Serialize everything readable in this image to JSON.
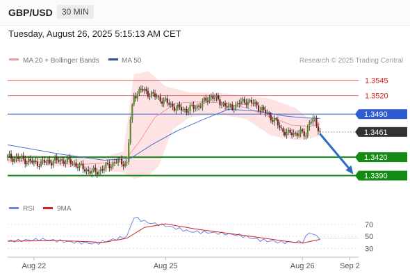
{
  "header": {
    "symbol": "GBP/USD",
    "timeframe": "30 MIN",
    "datetime": "Tuesday, August 26, 2025 5:15:13 AM CET"
  },
  "legend": {
    "ma20_bb": "MA 20 + Bollinger Bands",
    "ma50": "MA 50",
    "credit": "Research © 2025 Trading Central"
  },
  "rsi_legend": {
    "rsi": "RSI",
    "ma9": "9MA"
  },
  "colors": {
    "bg": "#ffffff",
    "resistance": "#e86a6a",
    "support": "#138a13",
    "ma50": "#4a6fd0",
    "ma20": "#f29a9a",
    "band": "#fde0e0",
    "current": "#333333",
    "arrow": "#2b6cc0",
    "rsi": "#6e86e0",
    "rsi_ma": "#d42020"
  },
  "chart_data": [
    {
      "type": "candlestick",
      "ylim": [
        1.3376,
        1.3566
      ],
      "x_ticks": [
        "Aug 22",
        "Aug 25",
        "Aug 26",
        "Sep 2"
      ],
      "levels": [
        {
          "label": "1.3545",
          "value": 1.3545,
          "kind": "resistance"
        },
        {
          "label": "1.3520",
          "value": 1.352,
          "kind": "resistance"
        },
        {
          "label": "1.3490",
          "value": 1.349,
          "kind": "ma50"
        },
        {
          "label": "1.3461",
          "value": 1.3461,
          "kind": "current"
        },
        {
          "label": "1.3420",
          "value": 1.342,
          "kind": "support"
        },
        {
          "label": "1.3390",
          "value": 1.339,
          "kind": "support"
        }
      ],
      "price_path": [
        [
          0,
          1.342
        ],
        [
          8,
          1.3417
        ],
        [
          16,
          1.341
        ],
        [
          24,
          1.3413
        ],
        [
          32,
          1.3415
        ],
        [
          38,
          1.341
        ],
        [
          44,
          1.34
        ],
        [
          50,
          1.3395
        ],
        [
          56,
          1.3404
        ],
        [
          62,
          1.3413
        ],
        [
          68,
          1.341
        ],
        [
          70,
          1.348
        ],
        [
          72,
          1.352
        ],
        [
          76,
          1.353
        ],
        [
          82,
          1.3522
        ],
        [
          90,
          1.351
        ],
        [
          96,
          1.35
        ],
        [
          102,
          1.3497
        ],
        [
          110,
          1.3505
        ],
        [
          116,
          1.352
        ],
        [
          122,
          1.3508
        ],
        [
          126,
          1.35
        ],
        [
          130,
          1.3505
        ],
        [
          136,
          1.3512
        ],
        [
          142,
          1.3504
        ],
        [
          148,
          1.349
        ],
        [
          152,
          1.348
        ],
        [
          156,
          1.3465
        ],
        [
          160,
          1.3458
        ],
        [
          166,
          1.346
        ],
        [
          170,
          1.3456
        ],
        [
          172,
          1.348
        ],
        [
          175,
          1.3478
        ],
        [
          178,
          1.3461
        ]
      ],
      "ma20_path": [
        [
          0,
          1.3415
        ],
        [
          20,
          1.3412
        ],
        [
          40,
          1.3408
        ],
        [
          66,
          1.3412
        ],
        [
          75,
          1.3445
        ],
        [
          84,
          1.3485
        ],
        [
          96,
          1.3508
        ],
        [
          110,
          1.351
        ],
        [
          124,
          1.3508
        ],
        [
          136,
          1.35
        ],
        [
          150,
          1.3485
        ],
        [
          162,
          1.3472
        ],
        [
          172,
          1.347
        ],
        [
          178,
          1.3473
        ]
      ],
      "ma50_path": [
        [
          0,
          1.344
        ],
        [
          30,
          1.3425
        ],
        [
          55,
          1.3415
        ],
        [
          70,
          1.3418
        ],
        [
          82,
          1.344
        ],
        [
          96,
          1.3462
        ],
        [
          112,
          1.3482
        ],
        [
          126,
          1.3498
        ],
        [
          142,
          1.3495
        ],
        [
          158,
          1.3487
        ],
        [
          168,
          1.3484
        ],
        [
          178,
          1.3483
        ]
      ],
      "band_upper": [
        [
          0,
          1.3425
        ],
        [
          30,
          1.3422
        ],
        [
          55,
          1.342
        ],
        [
          66,
          1.343
        ],
        [
          72,
          1.3555
        ],
        [
          80,
          1.356
        ],
        [
          90,
          1.3535
        ],
        [
          104,
          1.3525
        ],
        [
          120,
          1.3525
        ],
        [
          136,
          1.352
        ],
        [
          150,
          1.3515
        ],
        [
          164,
          1.35
        ],
        [
          172,
          1.3482
        ],
        [
          178,
          1.348
        ]
      ],
      "band_lower": [
        [
          0,
          1.341
        ],
        [
          30,
          1.3405
        ],
        [
          55,
          1.3398
        ],
        [
          66,
          1.3395
        ],
        [
          72,
          1.3385
        ],
        [
          80,
          1.339
        ],
        [
          86,
          1.3405
        ],
        [
          94,
          1.3465
        ],
        [
          104,
          1.3485
        ],
        [
          120,
          1.349
        ],
        [
          136,
          1.3482
        ],
        [
          150,
          1.3455
        ],
        [
          164,
          1.3448
        ],
        [
          172,
          1.345
        ],
        [
          178,
          1.3455
        ]
      ],
      "projection": {
        "from": [
          178,
          1.3458
        ],
        "to": [
          197,
          1.3392
        ]
      }
    },
    {
      "type": "line",
      "title": "RSI",
      "ylim": [
        20,
        85
      ],
      "y_ticks": [
        "70",
        "50",
        "30"
      ],
      "series": [
        {
          "name": "RSI",
          "points": [
            [
              0,
              42
            ],
            [
              20,
              45
            ],
            [
              35,
              41
            ],
            [
              50,
              38
            ],
            [
              62,
              46
            ],
            [
              68,
              50
            ],
            [
              72,
              82
            ],
            [
              80,
              73
            ],
            [
              90,
              68
            ],
            [
              104,
              58
            ],
            [
              118,
              56
            ],
            [
              132,
              52
            ],
            [
              144,
              44
            ],
            [
              156,
              40
            ],
            [
              168,
              41
            ],
            [
              172,
              57
            ],
            [
              178,
              47
            ]
          ]
        },
        {
          "name": "9MA",
          "points": [
            [
              0,
              42
            ],
            [
              30,
              43
            ],
            [
              55,
              40
            ],
            [
              68,
              47
            ],
            [
              78,
              65
            ],
            [
              90,
              71
            ],
            [
              108,
              62
            ],
            [
              126,
              55
            ],
            [
              144,
              48
            ],
            [
              158,
              42
            ],
            [
              168,
              39
            ],
            [
              178,
              45
            ]
          ]
        }
      ]
    }
  ]
}
